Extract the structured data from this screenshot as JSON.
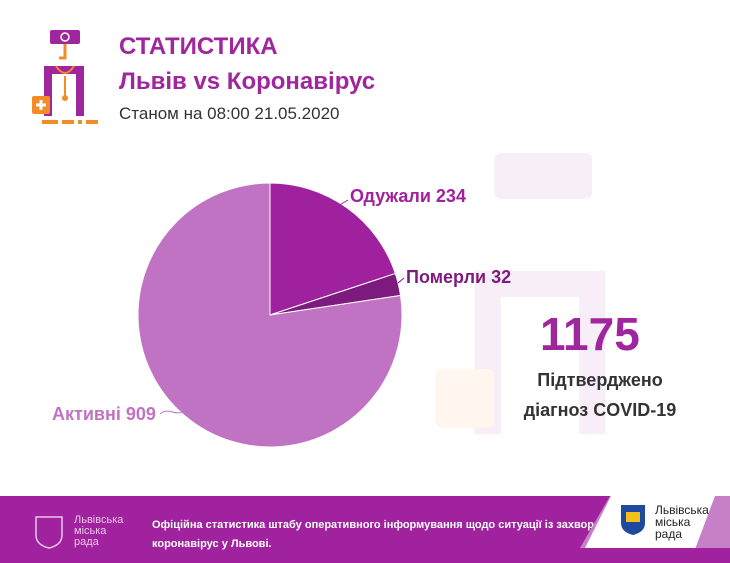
{
  "header": {
    "title": "СТАТИСТИКА",
    "subtitle": "Львів vs Коронавірус",
    "date": "Станом на 08:00 21.05.2020"
  },
  "chart_data": {
    "type": "pie",
    "slices": [
      {
        "label": "Одужали 234",
        "name": "Одужали",
        "value": 234,
        "color": "#a0219e"
      },
      {
        "label": "Померли 32",
        "name": "Померли",
        "value": 32,
        "color": "#7d1a7d"
      },
      {
        "label": "Активні 909",
        "name": "Активні",
        "value": 909,
        "color": "#c173c3"
      }
    ]
  },
  "summary": {
    "total": "1175",
    "caption1": "Підтверджено",
    "caption2": "діагноз COVID-19"
  },
  "footer": {
    "text1": "Офіційна статистика штабу оперативного інформування щодо ситуації із захворюванням на",
    "text2": "коронавірус у Львові.",
    "logo_text": "Львівська міська рада",
    "badge_line1": "Львівська",
    "badge_line2": "міська",
    "badge_line3": "рада"
  }
}
